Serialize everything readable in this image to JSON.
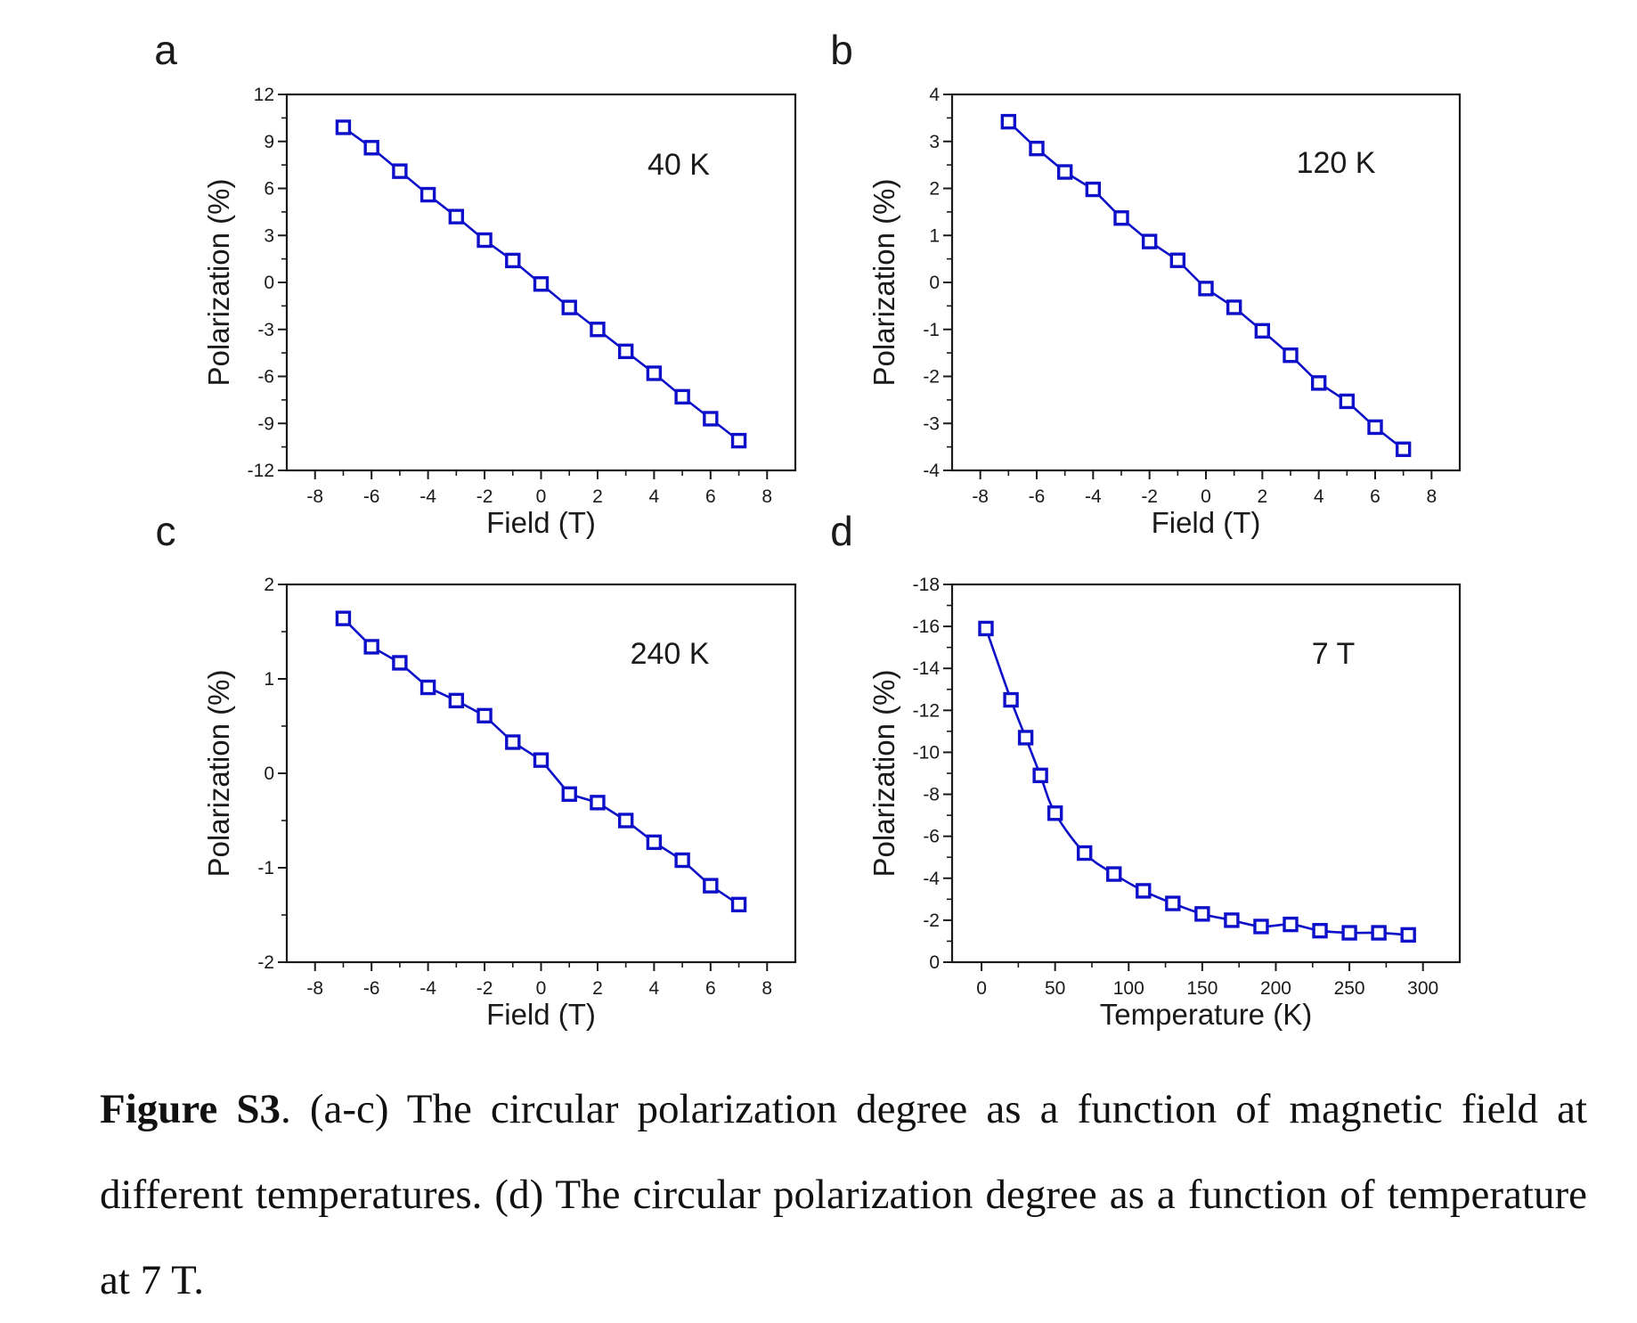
{
  "figure": {
    "caption": {
      "label": "Figure S3",
      "text": ". (a-c) The circular polarization degree as a function of magnetic field at different temperatures. (d) The circular polarization degree as a function of temperature at 7 T."
    },
    "colors": {
      "series": "#0d10c8",
      "axis": "#1a1a1a"
    }
  },
  "chart_data": [
    {
      "panel": "a",
      "type": "line",
      "annotation": "40 K",
      "xlabel": "Field (T)",
      "ylabel": "Polarization (%)",
      "xlim": [
        -9,
        9
      ],
      "ylim": [
        -12,
        12
      ],
      "xticks": [
        -8,
        -6,
        -4,
        -2,
        0,
        2,
        4,
        6,
        8
      ],
      "yticks": [
        -12,
        -9,
        -6,
        -3,
        0,
        3,
        6,
        9,
        12
      ],
      "grid": false,
      "marker": "open-square",
      "curve": "straight",
      "x": [
        -7,
        -6,
        -5,
        -4,
        -3,
        -2,
        -1,
        0,
        1,
        2,
        3,
        4,
        5,
        6,
        7
      ],
      "y": [
        9.9,
        8.6,
        7.1,
        5.6,
        4.2,
        2.7,
        1.4,
        -0.1,
        -1.6,
        -3.0,
        -4.4,
        -5.8,
        -7.3,
        -8.7,
        -10.1
      ]
    },
    {
      "panel": "b",
      "type": "line",
      "annotation": "120 K",
      "xlabel": "Field (T)",
      "ylabel": "Polarization (%)",
      "xlim": [
        -9,
        9
      ],
      "ylim": [
        -4,
        4
      ],
      "xticks": [
        -8,
        -6,
        -4,
        -2,
        0,
        2,
        4,
        6,
        8
      ],
      "yticks": [
        -4,
        -3,
        -2,
        -1,
        0,
        1,
        2,
        3,
        4
      ],
      "grid": false,
      "marker": "open-square",
      "curve": "straight",
      "x": [
        -7,
        -6,
        -5,
        -4,
        -3,
        -2,
        -1,
        0,
        1,
        2,
        3,
        4,
        5,
        6,
        7
      ],
      "y": [
        3.42,
        2.85,
        2.35,
        1.98,
        1.37,
        0.87,
        0.47,
        -0.13,
        -0.53,
        -1.03,
        -1.55,
        -2.14,
        -2.53,
        -3.08,
        -3.55
      ]
    },
    {
      "panel": "c",
      "type": "line",
      "annotation": "240 K",
      "xlabel": "Field (T)",
      "ylabel": "Polarization (%)",
      "xlim": [
        -9,
        9
      ],
      "ylim": [
        -2,
        2
      ],
      "xticks": [
        -8,
        -6,
        -4,
        -2,
        0,
        2,
        4,
        6,
        8
      ],
      "yticks": [
        -2,
        -1,
        0,
        1,
        2
      ],
      "grid": false,
      "marker": "open-square",
      "curve": "straight",
      "x": [
        -7,
        -6,
        -5,
        -4,
        -3,
        -2,
        -1,
        0,
        1,
        2,
        3,
        4,
        5,
        6,
        7
      ],
      "y": [
        1.64,
        1.34,
        1.17,
        0.91,
        0.77,
        0.61,
        0.33,
        0.14,
        -0.22,
        -0.31,
        -0.5,
        -0.73,
        -0.92,
        -1.19,
        -1.39
      ]
    },
    {
      "panel": "d",
      "type": "line",
      "annotation": "7 T",
      "xlabel": "Temperature (K)",
      "ylabel": "Polarization (%)",
      "xlim": [
        -20,
        325
      ],
      "ylim": [
        0,
        -18
      ],
      "yreversed": true,
      "xticks": [
        0,
        50,
        100,
        150,
        200,
        250,
        300
      ],
      "yticks": [
        0,
        -2,
        -4,
        -6,
        -8,
        -10,
        -12,
        -14,
        -16,
        -18
      ],
      "grid": false,
      "marker": "open-square",
      "curve": "smooth",
      "x": [
        3,
        20,
        30,
        40,
        50,
        70,
        90,
        110,
        130,
        150,
        170,
        190,
        210,
        230,
        250,
        270,
        290
      ],
      "y": [
        -15.9,
        -12.5,
        -10.7,
        -8.9,
        -7.1,
        -5.2,
        -4.2,
        -3.4,
        -2.8,
        -2.3,
        -2.0,
        -1.7,
        -1.8,
        -1.5,
        -1.4,
        -1.4,
        -1.3
      ]
    }
  ]
}
